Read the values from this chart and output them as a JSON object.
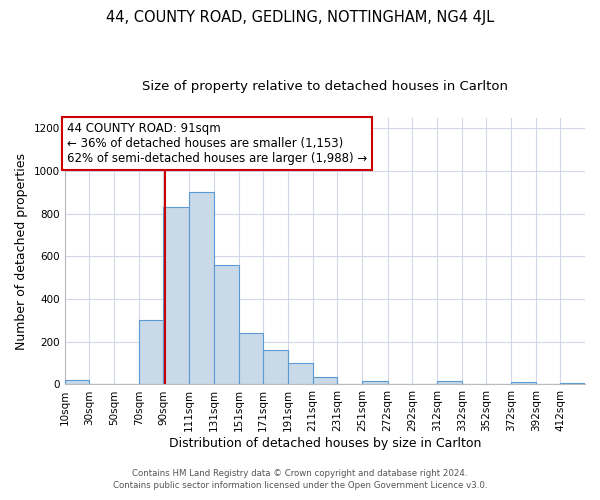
{
  "title": "44, COUNTY ROAD, GEDLING, NOTTINGHAM, NG4 4JL",
  "subtitle": "Size of property relative to detached houses in Carlton",
  "xlabel": "Distribution of detached houses by size in Carlton",
  "ylabel": "Number of detached properties",
  "footer_line1": "Contains HM Land Registry data © Crown copyright and database right 2024.",
  "footer_line2": "Contains public sector information licensed under the Open Government Licence v3.0.",
  "bin_labels": [
    "10sqm",
    "30sqm",
    "50sqm",
    "70sqm",
    "90sqm",
    "111sqm",
    "131sqm",
    "151sqm",
    "171sqm",
    "191sqm",
    "211sqm",
    "231sqm",
    "251sqm",
    "272sqm",
    "292sqm",
    "312sqm",
    "332sqm",
    "352sqm",
    "372sqm",
    "392sqm",
    "412sqm"
  ],
  "bin_edges": [
    10,
    30,
    50,
    70,
    90,
    111,
    131,
    151,
    171,
    191,
    211,
    231,
    251,
    272,
    292,
    312,
    332,
    352,
    372,
    392,
    412
  ],
  "bar_heights": [
    20,
    0,
    0,
    300,
    830,
    900,
    560,
    240,
    160,
    100,
    35,
    0,
    15,
    0,
    0,
    15,
    0,
    0,
    10,
    0,
    5
  ],
  "bar_color": "#c9d9e8",
  "bar_edge_color": "#5b9bd5",
  "property_size": 91,
  "vline_color": "#cc0000",
  "annotation_text": "44 COUNTY ROAD: 91sqm\n← 36% of detached houses are smaller (1,153)\n62% of semi-detached houses are larger (1,988) →",
  "annotation_box_color": "#ffffff",
  "annotation_box_edge_color": "#cc0000",
  "ylim": [
    0,
    1250
  ],
  "yticks": [
    0,
    200,
    400,
    600,
    800,
    1000,
    1200
  ],
  "background_color": "#ffffff",
  "grid_color": "#d0d8e8",
  "title_fontsize": 10.5,
  "subtitle_fontsize": 9.5,
  "axis_label_fontsize": 9,
  "tick_fontsize": 7.5,
  "annotation_fontsize": 8.5
}
